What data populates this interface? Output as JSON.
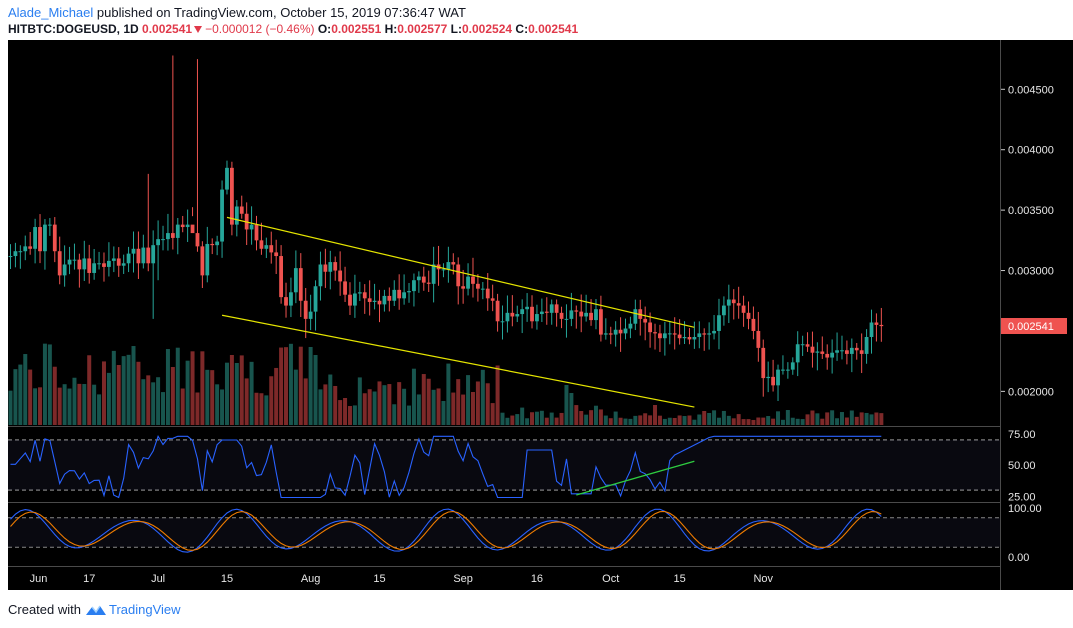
{
  "header": {
    "author": "Alade_Michael",
    "published": " published on TradingView.com, October 15, 2019 07:36:47 WAT",
    "symbol": "HITBTC:DOGEUSD, 1D",
    "price": "0.002541",
    "change": "−0.000012 (−0.46%)",
    "o_label": "O:",
    "o_value": "0.002551",
    "h_label": "H:",
    "h_value": "0.002577",
    "l_label": "L:",
    "l_value": "0.002524",
    "c_label": "C:",
    "c_value": "0.002541"
  },
  "footer": {
    "created_with": "Created with",
    "brand": "TradingView"
  },
  "colors": {
    "up": "#26a69a",
    "down": "#ef5350",
    "vol_up": "#1b5e57",
    "vol_down": "#8b2e2e",
    "channel": "#e5e500",
    "rsi": "#2962ff",
    "rsi_trend": "#2ecc40",
    "stoch_k": "#2962ff",
    "stoch_d": "#ef7c00",
    "price_tag": "#ef5350"
  },
  "chart_data": {
    "type": "candlestick",
    "price_axis": {
      "ticks": [
        "0.004500",
        "0.004000",
        "0.003500",
        "0.003000",
        "0.002000"
      ],
      "range": [
        0.00173,
        0.00485
      ],
      "last_price": "0.002541"
    },
    "x_labels": [
      "Jun",
      "17",
      "Jul",
      "15",
      "Aug",
      "15",
      "Sep",
      "16",
      "Oct",
      "15",
      "Nov"
    ],
    "rsi_axis": {
      "ticks": [
        "75.00",
        "50.00",
        "25.00"
      ],
      "levels": [
        70,
        30
      ]
    },
    "stoch_axis": {
      "ticks": [
        "100.00",
        "0.00"
      ],
      "levels": [
        80,
        20
      ]
    },
    "channel": {
      "upper": {
        "from": [
          "Jul 15",
          0.00344
        ],
        "to": [
          "Oct 18",
          0.00253
        ]
      },
      "lower": {
        "from": [
          "Jul 14",
          0.00263
        ],
        "to": [
          "Oct 18",
          0.00187
        ]
      }
    },
    "rsi_trendline": {
      "from": [
        "Sep 24",
        26
      ],
      "to": [
        "Oct 18",
        53
      ]
    },
    "close": [
      0.00312,
      0.00316,
      0.00316,
      0.0032,
      0.00318,
      0.00336,
      0.00316,
      0.00338,
      0.00338,
      0.00316,
      0.00296,
      0.00305,
      0.00309,
      0.00309,
      0.00301,
      0.0031,
      0.00298,
      0.00306,
      0.00306,
      0.00303,
      0.00308,
      0.0031,
      0.00304,
      0.00306,
      0.00314,
      0.00318,
      0.00306,
      0.00319,
      0.00306,
      0.00321,
      0.00326,
      0.00326,
      0.00331,
      0.00327,
      0.00338,
      0.00336,
      0.00338,
      0.00331,
      0.0032,
      0.00296,
      0.00322,
      0.00321,
      0.00324,
      0.00367,
      0.00385,
      0.00338,
      0.00353,
      0.00347,
      0.00334,
      0.00338,
      0.00325,
      0.00318,
      0.00321,
      0.00315,
      0.00312,
      0.00278,
      0.00271,
      0.00282,
      0.00302,
      0.00275,
      0.0026,
      0.00266,
      0.00287,
      0.00305,
      0.00299,
      0.00307,
      0.003,
      0.00291,
      0.0028,
      0.00271,
      0.00281,
      0.00282,
      0.00277,
      0.00274,
      0.00275,
      0.00272,
      0.00279,
      0.00275,
      0.00284,
      0.00277,
      0.00282,
      0.00283,
      0.00292,
      0.00295,
      0.0029,
      0.00289,
      0.00305,
      0.00301,
      0.00301,
      0.00307,
      0.00305,
      0.00287,
      0.00285,
      0.00295,
      0.00289,
      0.00285,
      0.00285,
      0.00277,
      0.00275,
      0.00258,
      0.00258,
      0.00265,
      0.00262,
      0.00264,
      0.00268,
      0.0027,
      0.00258,
      0.00264,
      0.00266,
      0.00265,
      0.00272,
      0.00265,
      0.0026,
      0.0026,
      0.00267,
      0.00266,
      0.00262,
      0.00265,
      0.00259,
      0.00268,
      0.00247,
      0.00248,
      0.00247,
      0.00251,
      0.00248,
      0.00252,
      0.00256,
      0.00268,
      0.0026,
      0.00257,
      0.00249,
      0.00248,
      0.00244,
      0.00248,
      0.00248,
      0.00247,
      0.00244,
      0.00245,
      0.00243,
      0.00245,
      0.00248,
      0.00247,
      0.00248,
      0.0025,
      0.00263,
      0.00271,
      0.00276,
      0.00273,
      0.00271,
      0.00265,
      0.0026,
      0.0025,
      0.00236,
      0.00211,
      0.00212,
      0.00205,
      0.00218,
      0.00218,
      0.00218,
      0.00224,
      0.00239,
      0.00239,
      0.00237,
      0.00232,
      0.00233,
      0.00231,
      0.00228,
      0.00232,
      0.00234,
      0.00234,
      0.00231,
      0.00236,
      0.00234,
      0.00231,
      0.00245,
      0.00257,
      0.00255,
      0.00254
    ],
    "rsi_note": "approximate visual trace",
    "stoch_note": "approximate visual trace"
  }
}
